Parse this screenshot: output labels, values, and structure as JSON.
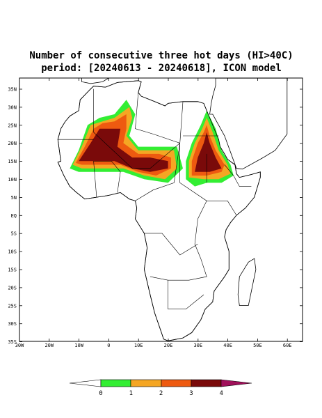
{
  "header": {
    "title_line1": "Number of consecutive three hot days (HI>40C)",
    "title_line2": "period: [20240613 - 20240618], ICON model"
  },
  "map": {
    "lat_labels": [
      "35N",
      "30N",
      "25N",
      "20N",
      "15N",
      "10N",
      "5N",
      "EQ",
      "5S",
      "10S",
      "15S",
      "20S",
      "25S",
      "30S",
      "35S"
    ],
    "lon_labels": [
      "30W",
      "20W",
      "10W",
      "0",
      "10E",
      "20E",
      "30E",
      "40E",
      "50E",
      "60E"
    ]
  },
  "colorbar": {
    "labels": [
      "0",
      "1",
      "2",
      "3",
      "4"
    ]
  }
}
